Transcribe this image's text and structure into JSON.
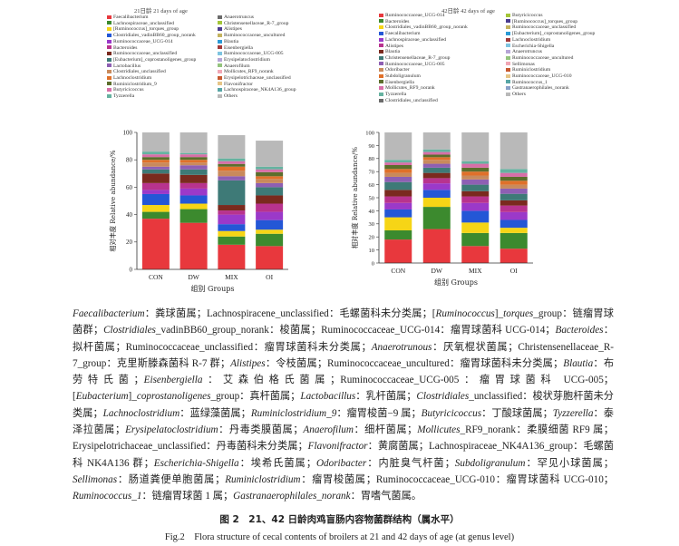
{
  "chart_data": [
    {
      "type": "bar",
      "stacked": true,
      "title": "21日龄 21 days of age",
      "xlabel": "组别 Groups",
      "ylabel": "相对丰度 Relative abundance/%",
      "ylim": [
        0,
        100
      ],
      "yticks": [
        0,
        20,
        40,
        60,
        80,
        100
      ],
      "categories": [
        "CON",
        "DW",
        "MIX",
        "OI"
      ],
      "legend": [
        {
          "name": "Faecalibacterium",
          "color": "#e8383d"
        },
        {
          "name": "Lachnospiraceae_unclassified",
          "color": "#3c8a2e"
        },
        {
          "name": "[Ruminococcus]_torques_group",
          "color": "#f6d516"
        },
        {
          "name": "Clostridiales_vadinBB60_group_norank",
          "color": "#2457d6"
        },
        {
          "name": "Ruminococcaceae_UCG-014",
          "color": "#9b39c9"
        },
        {
          "name": "Bacteroides",
          "color": "#b8338e"
        },
        {
          "name": "Ruminococcaceae_unclassified",
          "color": "#7a2a1e"
        },
        {
          "name": "[Eubacterium]_coprostanoligenes_group",
          "color": "#3e7a77"
        },
        {
          "name": "Lactobacillus",
          "color": "#8e5fb3"
        },
        {
          "name": "Clostridiales_unclassified",
          "color": "#c98a5c"
        },
        {
          "name": "Lachnoclostridium",
          "color": "#e0702a"
        },
        {
          "name": "Ruminiclostridium_9",
          "color": "#5c6e2c"
        },
        {
          "name": "Butyricicoccus",
          "color": "#d86fa8"
        },
        {
          "name": "Tyzzerella",
          "color": "#66b2a0"
        },
        {
          "name": "Anaerotruncus",
          "color": "#6b6b6b"
        },
        {
          "name": "Christensenellaceae_R-7_group",
          "color": "#a4c639"
        },
        {
          "name": "Alistipes",
          "color": "#4b3c8f"
        },
        {
          "name": "Ruminococcaceae_uncultured",
          "color": "#c4b35f"
        },
        {
          "name": "Blautia",
          "color": "#2b9ad6"
        },
        {
          "name": "Eisenbergiella",
          "color": "#a23a3a"
        },
        {
          "name": "Ruminococcaceae_UCG-005",
          "color": "#7ec4e0"
        },
        {
          "name": "Erysipelatoclostridium",
          "color": "#b6a5d6"
        },
        {
          "name": "Anaerofilum",
          "color": "#94c47d"
        },
        {
          "name": "Mollicutes_RF9_norank",
          "color": "#f1a7b5"
        },
        {
          "name": "Erysipelotrichaceae_unclassified",
          "color": "#c7582f"
        },
        {
          "name": "Flavonifractor",
          "color": "#e6c587"
        },
        {
          "name": "Lachnospiraceae_NK4A136_group",
          "color": "#58a6a6"
        },
        {
          "name": "Others",
          "color": "#b9b9b9"
        }
      ],
      "series": [
        {
          "name": "Faecalibacterium",
          "values": [
            37,
            34,
            18,
            17
          ]
        },
        {
          "name": "Lachnospiraceae_unclassified",
          "values": [
            5,
            10,
            6,
            9
          ]
        },
        {
          "name": "[Ruminococcus]_torques_group",
          "values": [
            5,
            4,
            4,
            3
          ]
        },
        {
          "name": "Clostridiales_vadinBB60_group_norank",
          "values": [
            8,
            6,
            5,
            7
          ]
        },
        {
          "name": "Ruminococcaceae_UCG-014",
          "values": [
            3,
            5,
            7,
            6
          ]
        },
        {
          "name": "Bacteroides",
          "values": [
            5,
            4,
            3,
            6
          ]
        },
        {
          "name": "Ruminococcaceae_unclassified",
          "values": [
            7,
            6,
            4,
            6
          ]
        },
        {
          "name": "[Eubacterium]_coprostanoligenes_group",
          "values": [
            3,
            4,
            18,
            6
          ]
        },
        {
          "name": "Lactobacillus",
          "values": [
            2,
            3,
            3,
            3
          ]
        },
        {
          "name": "Clostridiales_unclassified",
          "values": [
            3,
            2,
            4,
            3
          ]
        },
        {
          "name": "Lachnoclostridium",
          "values": [
            2,
            2,
            3,
            2
          ]
        },
        {
          "name": "Ruminiclostridium_9",
          "values": [
            2,
            2,
            2,
            3
          ]
        },
        {
          "name": "Butyricicoccus",
          "values": [
            2,
            2,
            2,
            2
          ]
        },
        {
          "name": "Tyzzerella",
          "values": [
            2,
            1,
            2,
            2
          ]
        },
        {
          "name": "Others",
          "values": [
            14,
            15,
            17,
            19
          ]
        }
      ]
    },
    {
      "type": "bar",
      "stacked": true,
      "title": "42日龄 42 days of age",
      "xlabel": "组别 Groups",
      "ylabel": "相对丰度 Relative abundance/%",
      "ylim": [
        0,
        100
      ],
      "yticks": [
        0,
        10,
        20,
        30,
        40,
        50,
        60,
        70,
        80,
        90,
        100
      ],
      "categories": [
        "CON",
        "DW",
        "MIX",
        "OI"
      ],
      "legend": [
        {
          "name": "Ruminococcaceae_UCG-014",
          "color": "#e8383d"
        },
        {
          "name": "Bacteroides",
          "color": "#3c8a2e"
        },
        {
          "name": "Clostridiales_vadinBB60_group_norank",
          "color": "#f6d516"
        },
        {
          "name": "Faecalibacterium",
          "color": "#2457d6"
        },
        {
          "name": "Lachnospiraceae_unclassified",
          "color": "#9b39c9"
        },
        {
          "name": "Alistipes",
          "color": "#b8338e"
        },
        {
          "name": "Blautia",
          "color": "#7a2a1e"
        },
        {
          "name": "Christensenellaceae_R-7_group",
          "color": "#3e7a77"
        },
        {
          "name": "Ruminococcaceae_UCG-005",
          "color": "#8e5fb3"
        },
        {
          "name": "Odoribacter",
          "color": "#c98a5c"
        },
        {
          "name": "Subdoligranulum",
          "color": "#e0702a"
        },
        {
          "name": "Eisenbergiella",
          "color": "#5c6e2c"
        },
        {
          "name": "Mollicutes_RF9_norank",
          "color": "#d86fa8"
        },
        {
          "name": "Tyzzerella",
          "color": "#66b2a0"
        },
        {
          "name": "Clostridiales_unclassified",
          "color": "#6b6b6b"
        },
        {
          "name": "Butyricicoccus",
          "color": "#a4c639"
        },
        {
          "name": "[Ruminococcus]_torques_group",
          "color": "#4b3c8f"
        },
        {
          "name": "Ruminococcaceae_unclassified",
          "color": "#c4b35f"
        },
        {
          "name": "[Eubacterium]_coprostanoligenes_group",
          "color": "#2b9ad6"
        },
        {
          "name": "Lachnoclostridium",
          "color": "#a23a3a"
        },
        {
          "name": "Escherichia-Shigella",
          "color": "#7ec4e0"
        },
        {
          "name": "Anaerotruncus",
          "color": "#b6a5d6"
        },
        {
          "name": "Ruminococcaceae_uncultured",
          "color": "#94c47d"
        },
        {
          "name": "Sellimonas",
          "color": "#f1a7b5"
        },
        {
          "name": "Ruminiclostridium",
          "color": "#c7582f"
        },
        {
          "name": "Ruminococcaceae_UCG-010",
          "color": "#e6c587"
        },
        {
          "name": "Ruminococcus_1",
          "color": "#58a6a6"
        },
        {
          "name": "Gastranaerophilales_norank",
          "color": "#8aa0c8"
        },
        {
          "name": "Others",
          "color": "#b9b9b9"
        }
      ],
      "series": [
        {
          "name": "Ruminococcaceae_UCG-014",
          "values": [
            18,
            26,
            13,
            11
          ]
        },
        {
          "name": "Bacteroides",
          "values": [
            7,
            17,
            10,
            12
          ]
        },
        {
          "name": "Clostridiales_vadinBB60_group_norank",
          "values": [
            10,
            7,
            8,
            4
          ]
        },
        {
          "name": "Faecalibacterium",
          "values": [
            6,
            6,
            9,
            6
          ]
        },
        {
          "name": "Lachnospiraceae_unclassified",
          "values": [
            5,
            5,
            6,
            6
          ]
        },
        {
          "name": "Alistipes",
          "values": [
            5,
            4,
            5,
            5
          ]
        },
        {
          "name": "Blautia",
          "values": [
            5,
            4,
            4,
            4
          ]
        },
        {
          "name": "Christensenellaceae_R-7_group",
          "values": [
            6,
            4,
            5,
            5
          ]
        },
        {
          "name": "Ruminococcaceae_UCG-005",
          "values": [
            4,
            3,
            4,
            4
          ]
        },
        {
          "name": "Odoribacter",
          "values": [
            3,
            3,
            3,
            3
          ]
        },
        {
          "name": "Subdoligranulum",
          "values": [
            3,
            2,
            3,
            3
          ]
        },
        {
          "name": "Eisenbergiella",
          "values": [
            3,
            2,
            3,
            3
          ]
        },
        {
          "name": "Mollicutes_RF9_norank",
          "values": [
            2,
            2,
            3,
            3
          ]
        },
        {
          "name": "Tyzzerella",
          "values": [
            2,
            2,
            2,
            3
          ]
        },
        {
          "name": "Others",
          "values": [
            21,
            13,
            22,
            28
          ]
        }
      ]
    }
  ],
  "body_text": {
    "p01": "Faecalibacterium",
    "p02": "：粪球菌属；Lachnospiracene_unclassified：毛螺菌科未分类属；[",
    "p03": "Ruminococcus",
    "p04": "]_",
    "p05": "torques",
    "p06": "_group：链瘤胃球菌群；",
    "p07": "Clostridiales",
    "p08": "_vadinBB60_group_norank：梭菌属；Ruminococcaceae_UCG-014：瘤胃球菌科 UCG-014；",
    "p09": "Bacteroides",
    "p10": "：拟杆菌属；Ruminococcaceae_unclassified：瘤胃球菌科未分类属；",
    "p11": "Anaerotrunous",
    "p12": "：厌氧棍状菌属；Christensenellaceae_R-7_group：克里斯滕森菌科 R-7 群；",
    "p13": "Alistipes",
    "p14": "：令枝菌属；Ruminococcaceae_uncultured：瘤胃球菌科未分类属；",
    "p15": "Blautia",
    "p16": "：布劳特氏菌；",
    "p17": "Eisenbergiella",
    "p18": "：艾森伯格氏菌属；Ruminococcaceae_UCG-005：瘤胃球菌科 UCG-005；[",
    "p19": "Eubacterium",
    "p20": "]_",
    "p21": "coprostanoligenes",
    "p22": "_group：真杆菌属；",
    "p23": "Lactobacillus",
    "p24": "：乳杆菌属；",
    "p25": "Clostridiales",
    "p26": "_unclassified：梭状芽胞杆菌未分类属；",
    "p27": "Lachnoclostridium",
    "p28": "：蓝绿藻菌属；",
    "p29": "Ruminiclostridium_9",
    "p30": "：瘤胃梭菌−9 属；",
    "p31": "Butyricicoccus",
    "p32": "：丁酸球菌属；",
    "p33": "Tyzzerella",
    "p34": "：泰泽拉菌属；",
    "p35": "Erysipelatoclostridium",
    "p36": "：丹毒类膜菌属；",
    "p37": "Anaerofilum",
    "p38": "：细杆菌属；",
    "p39": "Mollicutes",
    "p40": "_RF9_norank：柔膜细菌 RF9 属；Erysipelotrichaceae_unclassified：丹毒菌科未分类属；",
    "p41": "Flavonifractor",
    "p42": "：黄腐菌属；Lachnospiraceae_NK4A136_group：毛螺菌科 NK4A136 群；",
    "p43": "Escherichia-Shigella",
    "p44": "：埃希氏菌属；",
    "p45": "Odoribacter",
    "p46": "：内脏臭气杆菌；",
    "p47": "Subdoligranulum",
    "p48": "：罕见小球菌属；",
    "p49": "Sellimonas",
    "p50": "：肠道粪便单胞菌属；",
    "p51": "Ruminiclostridium",
    "p52": "：瘤胃梭菌属；Ruminococcaceae_UCG-010：瘤胃球菌科 UCG-010；",
    "p53": "Ruminococcus_1",
    "p54": "：链瘤胃球菌 1 属；",
    "p55": "Gastranaerophilales_norank",
    "p56": "：胃嗜气菌属。"
  },
  "caption": {
    "zh": "图 2　21、42 日龄肉鸡盲肠内容物菌群结构（属水平）",
    "en": "Fig.2　Flora structure of cecal contents of broilers at 21 and 42 days of age (at genus level)"
  }
}
